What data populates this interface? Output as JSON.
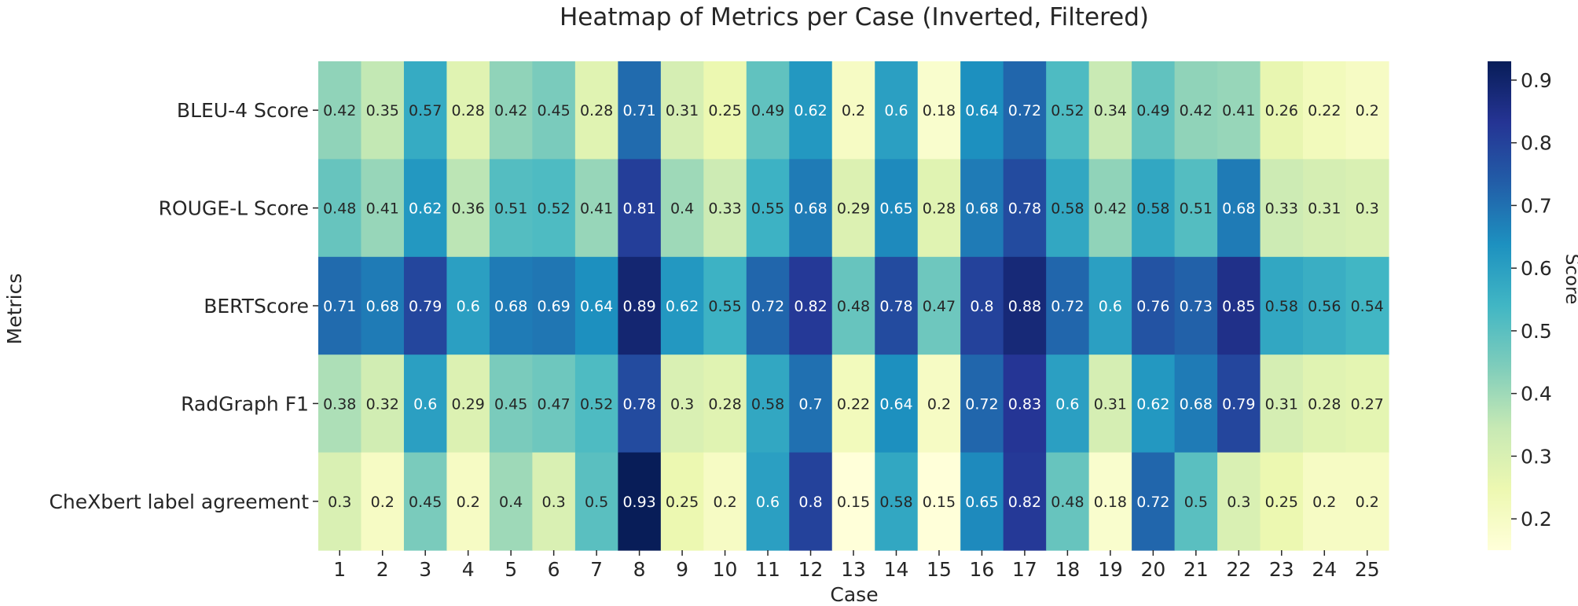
{
  "chart_data": {
    "type": "heatmap",
    "title": "Heatmap of Metrics per Case (Inverted, Filtered)",
    "xlabel": "Case",
    "ylabel": "Metrics",
    "colorbar_label": "Score",
    "colorbar_range": [
      0.15,
      0.93
    ],
    "colorbar_ticks": [
      0.2,
      0.3,
      0.4,
      0.5,
      0.6,
      0.7,
      0.8,
      0.9
    ],
    "colormap": "YlGnBu",
    "x_categories": [
      "1",
      "2",
      "3",
      "4",
      "5",
      "6",
      "7",
      "8",
      "9",
      "10",
      "11",
      "12",
      "13",
      "14",
      "15",
      "16",
      "17",
      "18",
      "19",
      "20",
      "21",
      "22",
      "23",
      "24",
      "25"
    ],
    "y_categories": [
      "BLEU-4 Score",
      "ROUGE-L Score",
      "BERTScore",
      "RadGraph F1",
      "CheXbert label agreement"
    ],
    "values": [
      [
        0.42,
        0.35,
        0.57,
        0.28,
        0.42,
        0.45,
        0.28,
        0.71,
        0.31,
        0.25,
        0.49,
        0.62,
        0.2,
        0.6,
        0.18,
        0.64,
        0.72,
        0.52,
        0.34,
        0.49,
        0.42,
        0.41,
        0.26,
        0.22,
        0.2
      ],
      [
        0.48,
        0.41,
        0.62,
        0.36,
        0.51,
        0.52,
        0.41,
        0.81,
        0.4,
        0.33,
        0.55,
        0.68,
        0.29,
        0.65,
        0.28,
        0.68,
        0.78,
        0.58,
        0.42,
        0.58,
        0.51,
        0.68,
        0.33,
        0.31,
        0.3
      ],
      [
        0.71,
        0.68,
        0.79,
        0.6,
        0.68,
        0.69,
        0.64,
        0.89,
        0.62,
        0.55,
        0.72,
        0.82,
        0.48,
        0.78,
        0.47,
        0.8,
        0.88,
        0.72,
        0.6,
        0.76,
        0.73,
        0.85,
        0.58,
        0.56,
        0.54
      ],
      [
        0.38,
        0.32,
        0.6,
        0.29,
        0.45,
        0.47,
        0.52,
        0.78,
        0.3,
        0.28,
        0.58,
        0.7,
        0.22,
        0.64,
        0.2,
        0.72,
        0.83,
        0.6,
        0.31,
        0.62,
        0.68,
        0.79,
        0.31,
        0.28,
        0.27
      ],
      [
        0.3,
        0.2,
        0.45,
        0.2,
        0.4,
        0.3,
        0.5,
        0.93,
        0.25,
        0.2,
        0.6,
        0.8,
        0.15,
        0.58,
        0.15,
        0.65,
        0.82,
        0.48,
        0.18,
        0.72,
        0.5,
        0.3,
        0.25,
        0.2,
        0.2
      ]
    ]
  }
}
